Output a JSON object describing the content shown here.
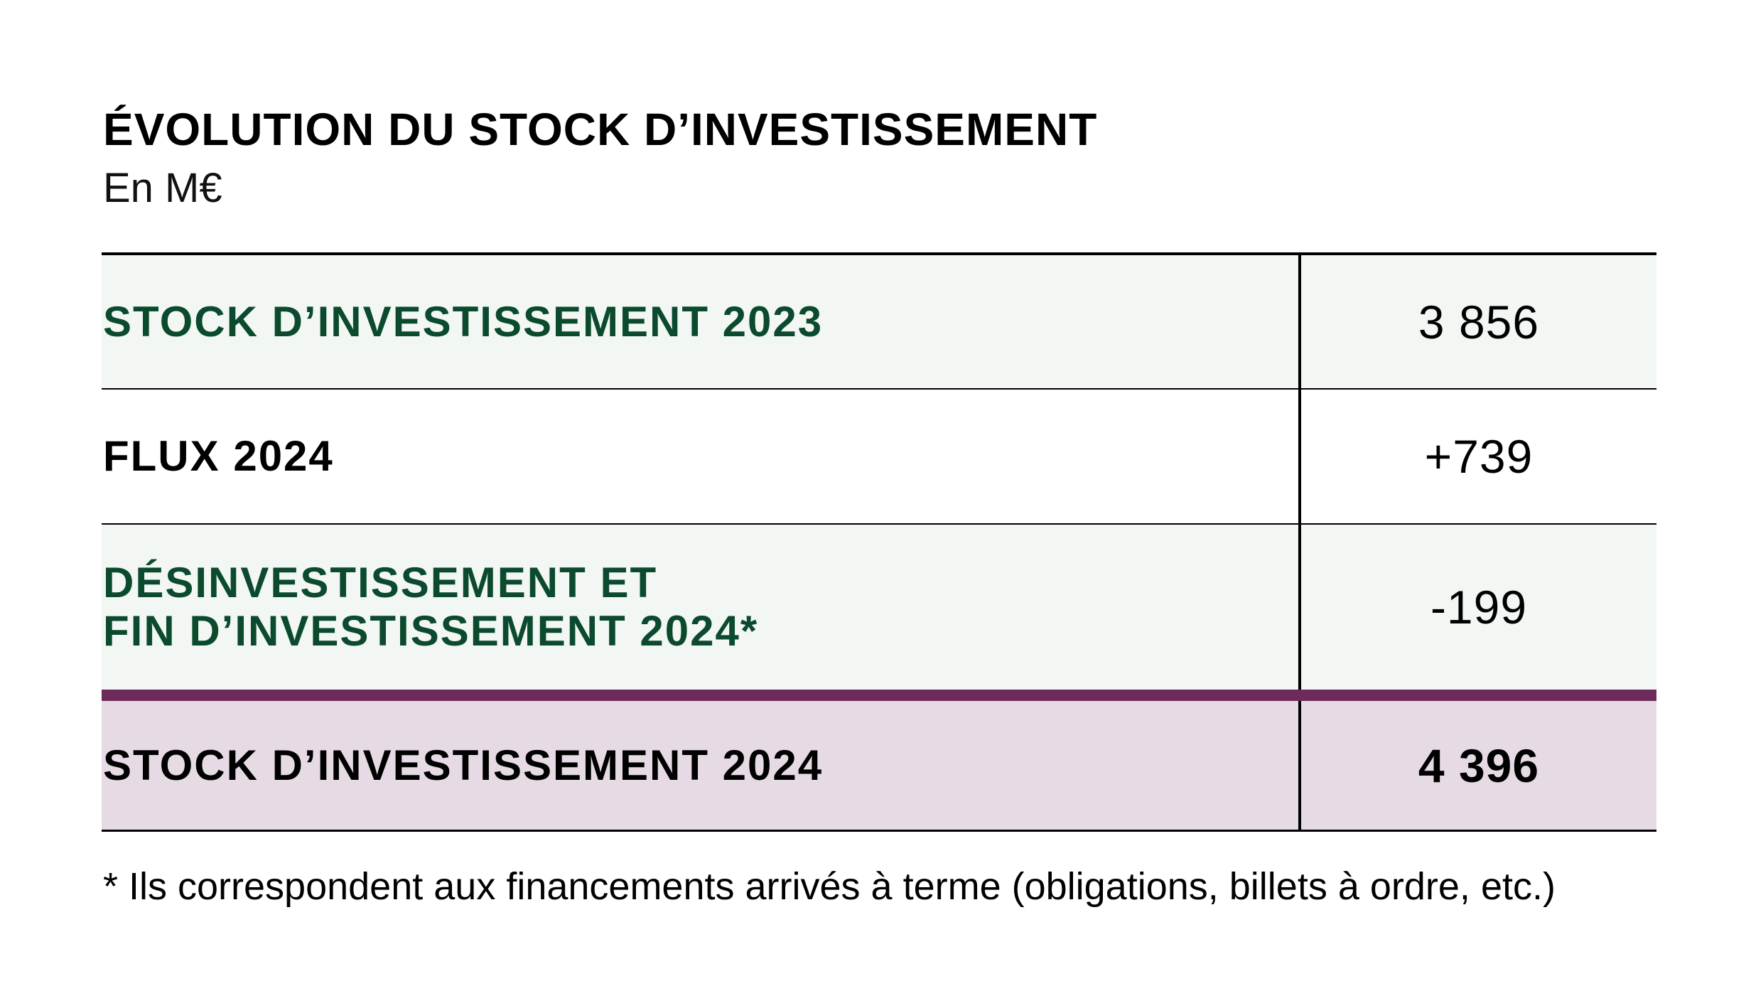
{
  "title": "ÉVOLUTION DU STOCK D’INVESTISSEMENT",
  "subtitle": "En M€",
  "table": {
    "rows": [
      {
        "label": "STOCK D’INVESTISSEMENT 2023",
        "value": "3 856"
      },
      {
        "label": "FLUX 2024",
        "value": "+739"
      },
      {
        "label_line1": "DÉSINVESTISSEMENT ET",
        "label_line2": "FIN D’INVESTISSEMENT 2024*",
        "value": "-199"
      },
      {
        "label": "STOCK D’INVESTISSEMENT 2024",
        "value": "4 396"
      }
    ]
  },
  "footnote": "* Ils correspondent aux financements arrivés à terme (obligations, billets à ordre, etc.)",
  "colors": {
    "green_text": "#0c4a2e",
    "green_row_bg": "#f2f7f4",
    "total_row_bg": "#e6dbe5",
    "total_accent": "#6e2a5b"
  }
}
